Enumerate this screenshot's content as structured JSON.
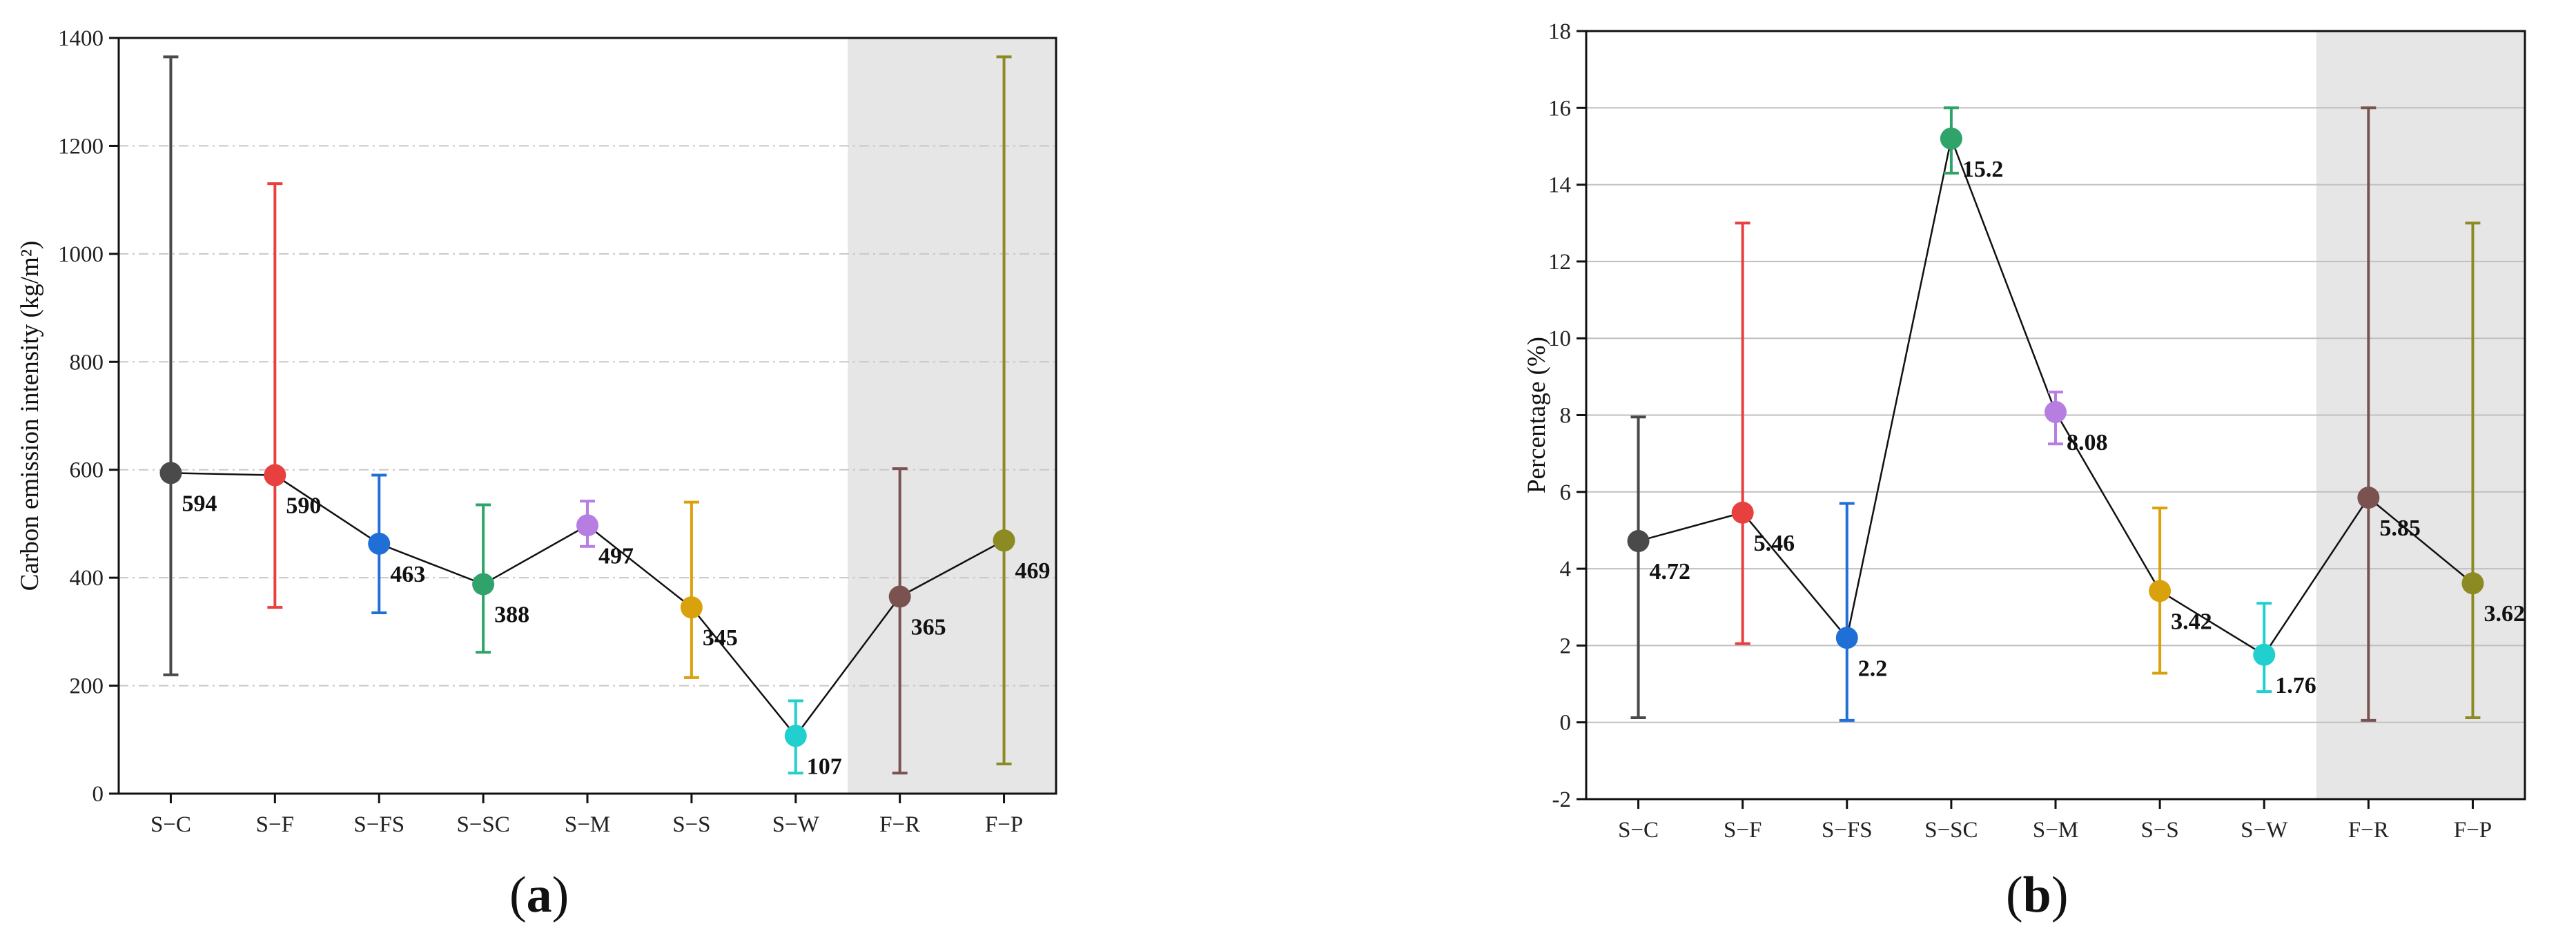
{
  "chart_data": [
    {
      "type": "scatter",
      "panel_label": "a",
      "title": "",
      "xlabel": "",
      "ylabel": "Carbon emission intensity (kg/m²)",
      "categories": [
        "S−C",
        "S−F",
        "S−FS",
        "S−SC",
        "S−M",
        "S−S",
        "S−W",
        "F−R",
        "F−P"
      ],
      "values": [
        594,
        590,
        463,
        388,
        497,
        345,
        107,
        365,
        469
      ],
      "value_labels": [
        "594",
        "590",
        "463",
        "388",
        "497",
        "345",
        "107",
        "365",
        "469"
      ],
      "error_low": [
        220,
        345,
        335,
        262,
        458,
        215,
        38,
        38,
        55
      ],
      "error_high": [
        1365,
        1130,
        590,
        535,
        542,
        540,
        172,
        602,
        1365
      ],
      "colors": [
        "#4a4a4a",
        "#e8403f",
        "#1f6fd6",
        "#2fa36a",
        "#b57ee0",
        "#d9a10b",
        "#22cfcf",
        "#7a5350",
        "#8c8a23"
      ],
      "connecting_line": true,
      "shaded_categories": [
        "F−R",
        "F−P"
      ],
      "shade_color": "#e6e6e6",
      "ylim": [
        0,
        1400
      ],
      "yticks": [
        0,
        200,
        400,
        600,
        800,
        1000,
        1200,
        1400
      ],
      "grid": "horizontal dashed"
    },
    {
      "type": "scatter",
      "panel_label": "b",
      "title": "",
      "xlabel": "",
      "ylabel": "Percentage (%)",
      "categories": [
        "S−C",
        "S−F",
        "S−FS",
        "S−SC",
        "S−M",
        "S−S",
        "S−W",
        "F−R",
        "F−P"
      ],
      "values": [
        4.72,
        5.46,
        2.2,
        15.2,
        8.08,
        3.42,
        1.76,
        5.85,
        3.62
      ],
      "value_labels": [
        "4.72",
        "5.46",
        "2.2",
        "15.2",
        "8.08",
        "3.42",
        "1.76",
        "5.85",
        "3.62"
      ],
      "error_low": [
        0.12,
        2.05,
        0.05,
        14.3,
        7.25,
        1.28,
        0.8,
        0.05,
        0.12
      ],
      "error_high": [
        7.95,
        13.0,
        5.7,
        16.0,
        8.6,
        5.58,
        3.1,
        16.0,
        13.0
      ],
      "colors": [
        "#4a4a4a",
        "#e8403f",
        "#1f6fd6",
        "#2fa36a",
        "#b57ee0",
        "#d9a10b",
        "#22cfcf",
        "#7a5350",
        "#8c8a23"
      ],
      "connecting_line": true,
      "shaded_categories": [
        "F−R",
        "F−P"
      ],
      "shade_color": "#e6e6e6",
      "ylim": [
        -2,
        18
      ],
      "yticks": [
        -2,
        0,
        2,
        4,
        6,
        8,
        10,
        12,
        14,
        16,
        18
      ],
      "grid": "horizontal solid"
    }
  ]
}
